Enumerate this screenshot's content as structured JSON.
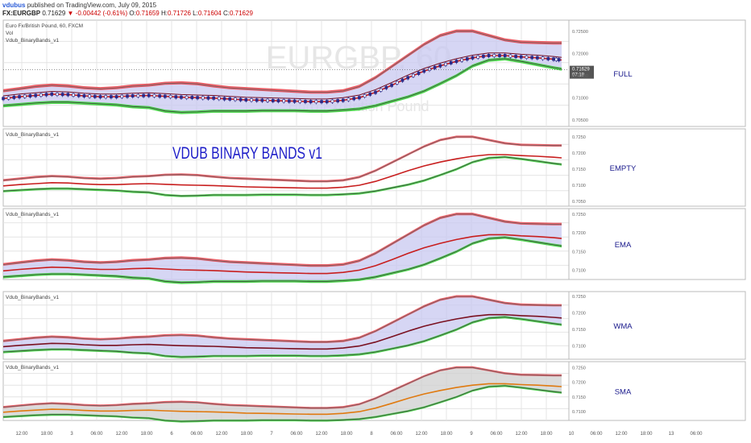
{
  "header": {
    "author": "vdubus",
    "published": "published on TradingView.com, July 09, 2015",
    "symbol": "FX:EURGBP",
    "last": "0.71629",
    "change": "▼ -0.00442 (-0.61%)",
    "o_label": "O:",
    "o_value": "0.71659",
    "h_label": "H:",
    "h_value": "0.71726",
    "l_label": "L:",
    "l_value": "0.71604",
    "c_label": "C:",
    "c_value": "0.71629"
  },
  "watermark": {
    "symbol": "EURGBP, 60",
    "name": "Euro Fx/British Pound"
  },
  "banner": "VDUB BINARY BANDS v1",
  "colors": {
    "upper": "#e8414a",
    "lower": "#3dd03d",
    "mid_red": "#c81e1e",
    "mid_dark": "#7a1020",
    "mid_orange": "#e07a10",
    "fill_blue": "#c8c8f0",
    "fill_gray": "#cfcfcf",
    "candle": "#2b2b8a",
    "grid": "#e4e4e4",
    "label": "#1a1a8c"
  },
  "x_ticks": [
    "12:00",
    "18:00",
    "3",
    "06:00",
    "12:00",
    "18:00",
    "6",
    "06:00",
    "12:00",
    "18:00",
    "7",
    "06:00",
    "12:00",
    "18:00",
    "8",
    "06:00",
    "12:00",
    "18:00",
    "9",
    "06:00",
    "12:00",
    "18:00",
    "10",
    "06:00",
    "12:00",
    "18:00",
    "13",
    "06:00"
  ],
  "chart_data": [
    {
      "type": "line",
      "panel_label": "FULL",
      "legend": [
        "Euro Fx/British Pound, 60, FXCM",
        "Vol",
        "Vdub_BinaryBands_v1"
      ],
      "yticks": [
        "0.72500",
        "0.72000",
        "0.71629",
        "0.71500",
        "0.71000",
        "0.70500"
      ],
      "price_tag": "0.71629",
      "time_tag": "07:18",
      "ylim": [
        0.7035,
        0.7275
      ]
    },
    {
      "type": "line",
      "panel_label": "EMPTY",
      "legend": [
        "Vdub_BinaryBands_v1"
      ],
      "yticks": [
        "0.7250",
        "0.7200",
        "0.7150",
        "0.7100",
        "0.7050"
      ],
      "ylim": [
        0.7035,
        0.7275
      ]
    },
    {
      "type": "area",
      "panel_label": "EMA",
      "legend": [
        "Vdub_BinaryBands_v1"
      ],
      "yticks": [
        "0.7250",
        "0.7200",
        "0.7150",
        "0.7100"
      ],
      "ylim": [
        0.7075,
        0.7265
      ]
    },
    {
      "type": "area",
      "panel_label": "WMA",
      "legend": [
        "Vdub_BinaryBands_v1"
      ],
      "yticks": [
        "0.7250",
        "0.7200",
        "0.7150",
        "0.7100"
      ],
      "ylim": [
        0.706,
        0.7265
      ]
    },
    {
      "type": "area",
      "panel_label": "SMA",
      "legend": [
        "Vdub_BinaryBands_v1"
      ],
      "yticks": [
        "0.7250",
        "0.7200",
        "0.7150",
        "0.7100"
      ],
      "ylim": [
        0.707,
        0.727
      ]
    }
  ],
  "bands": {
    "x": [
      0,
      20,
      40,
      60,
      80,
      100,
      120,
      140,
      160,
      180,
      200,
      220,
      240,
      260,
      280,
      300,
      320,
      340,
      360,
      380,
      400,
      420,
      440,
      460,
      480,
      500,
      520,
      540,
      560,
      580,
      600,
      620,
      640,
      660,
      680,
      690
    ],
    "upper": [
      0.7115,
      0.712,
      0.7125,
      0.7128,
      0.7126,
      0.7122,
      0.712,
      0.7122,
      0.7126,
      0.7128,
      0.7132,
      0.7133,
      0.7131,
      0.7126,
      0.7122,
      0.712,
      0.7118,
      0.7116,
      0.7114,
      0.7112,
      0.7112,
      0.7115,
      0.7125,
      0.7145,
      0.717,
      0.7195,
      0.722,
      0.724,
      0.725,
      0.725,
      0.724,
      0.723,
      0.7225,
      0.7224,
      0.7223,
      0.7223
    ],
    "mid": [
      0.7098,
      0.7102,
      0.7105,
      0.7108,
      0.7107,
      0.7104,
      0.7102,
      0.7102,
      0.7104,
      0.7105,
      0.7103,
      0.7101,
      0.71,
      0.7099,
      0.7097,
      0.7095,
      0.7094,
      0.7093,
      0.7092,
      0.7091,
      0.7091,
      0.7094,
      0.71,
      0.7112,
      0.7128,
      0.7145,
      0.716,
      0.7172,
      0.7182,
      0.719,
      0.7195,
      0.7195,
      0.7192,
      0.719,
      0.7187,
      0.7185
    ],
    "lower": [
      0.7082,
      0.7085,
      0.7088,
      0.709,
      0.709,
      0.7088,
      0.7086,
      0.7084,
      0.708,
      0.7078,
      0.707,
      0.7067,
      0.7068,
      0.707,
      0.707,
      0.707,
      0.7071,
      0.7071,
      0.7071,
      0.707,
      0.707,
      0.7072,
      0.7075,
      0.7082,
      0.7092,
      0.7102,
      0.7115,
      0.7132,
      0.715,
      0.7172,
      0.7185,
      0.7188,
      0.7182,
      0.7175,
      0.7168,
      0.7165
    ]
  }
}
